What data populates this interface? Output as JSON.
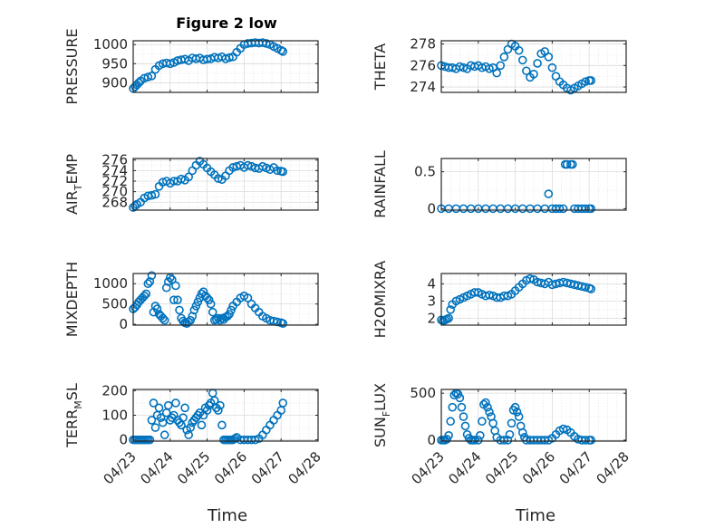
{
  "chart_data": [
    {
      "type": "scatter",
      "title": "Figure 2 low",
      "ylabel": "PRESSURE",
      "ylim": [
        875,
        1010
      ],
      "yticks": [
        900,
        950,
        1000
      ],
      "xlim": [
        0,
        5
      ],
      "x": [
        0,
        0.05,
        0.1,
        0.15,
        0.2,
        0.3,
        0.4,
        0.5,
        0.6,
        0.7,
        0.8,
        0.9,
        1.0,
        1.1,
        1.2,
        1.3,
        1.4,
        1.5,
        1.6,
        1.7,
        1.8,
        1.9,
        2.0,
        2.1,
        2.2,
        2.3,
        2.4,
        2.5,
        2.6,
        2.7,
        2.8,
        2.9,
        3.0,
        3.1,
        3.2,
        3.3,
        3.4,
        3.5,
        3.6,
        3.7,
        3.8,
        3.9,
        4.0,
        4.05
      ],
      "y": [
        885,
        890,
        895,
        900,
        905,
        912,
        915,
        918,
        935,
        945,
        950,
        952,
        950,
        953,
        958,
        960,
        962,
        958,
        965,
        963,
        965,
        960,
        962,
        963,
        967,
        965,
        968,
        963,
        966,
        968,
        980,
        990,
        1000,
        1003,
        1004,
        1005,
        1004,
        1005,
        1003,
        1000,
        995,
        990,
        985,
        982
      ]
    },
    {
      "type": "scatter",
      "ylabel": "THETA",
      "ylim": [
        273.5,
        278.3
      ],
      "yticks": [
        274,
        276,
        278
      ],
      "xlim": [
        0,
        5
      ],
      "x": [
        0,
        0.1,
        0.2,
        0.3,
        0.4,
        0.5,
        0.6,
        0.7,
        0.8,
        0.9,
        1.0,
        1.1,
        1.2,
        1.3,
        1.4,
        1.5,
        1.6,
        1.7,
        1.8,
        1.9,
        2.0,
        2.1,
        2.2,
        2.3,
        2.4,
        2.5,
        2.6,
        2.7,
        2.8,
        2.9,
        3.0,
        3.1,
        3.2,
        3.3,
        3.4,
        3.5,
        3.6,
        3.7,
        3.8,
        3.9,
        4.0,
        4.05
      ],
      "y": [
        276,
        275.9,
        275.8,
        275.8,
        275.7,
        275.9,
        275.8,
        275.7,
        276,
        275.9,
        276,
        275.8,
        275.9,
        275.7,
        275.8,
        275.3,
        276,
        276.8,
        277.5,
        278,
        277.8,
        277.4,
        276.5,
        275.5,
        274.9,
        275.2,
        276.2,
        277.1,
        277.3,
        276.8,
        275.8,
        275,
        274.5,
        274.2,
        273.9,
        273.7,
        273.9,
        274.1,
        274.3,
        274.5,
        274.6,
        274.6
      ]
    },
    {
      "type": "scatter",
      "ylabel": "AIR_TEMP",
      "ylim": [
        266.5,
        276.3
      ],
      "yticks": [
        268,
        270,
        272,
        274,
        276
      ],
      "xlim": [
        0,
        5
      ],
      "x": [
        0,
        0.05,
        0.1,
        0.2,
        0.3,
        0.4,
        0.5,
        0.6,
        0.7,
        0.8,
        0.9,
        1.0,
        1.1,
        1.2,
        1.3,
        1.4,
        1.5,
        1.6,
        1.7,
        1.8,
        1.9,
        2.0,
        2.1,
        2.2,
        2.3,
        2.4,
        2.5,
        2.6,
        2.7,
        2.8,
        2.9,
        3.0,
        3.1,
        3.2,
        3.3,
        3.4,
        3.5,
        3.6,
        3.7,
        3.8,
        3.9,
        4.0,
        4.05
      ],
      "y": [
        267,
        267.3,
        267.6,
        268,
        268.8,
        269.2,
        269.3,
        269.5,
        271,
        271.8,
        272,
        271.6,
        272,
        272,
        272.4,
        272.2,
        272.8,
        274,
        275,
        275.8,
        275.2,
        274.5,
        273.8,
        273.2,
        272.5,
        272.3,
        273,
        274,
        274.6,
        274.8,
        275,
        274.6,
        275,
        274.8,
        274.5,
        274.4,
        274.8,
        274.5,
        274.2,
        274.6,
        274,
        273.9,
        273.8
      ]
    },
    {
      "type": "scatter",
      "ylabel": "RAINFALL",
      "ylim": [
        -0.02,
        0.68
      ],
      "yticks": [
        0,
        0.5
      ],
      "xlim": [
        0,
        5
      ],
      "x": [
        0,
        0.2,
        0.4,
        0.6,
        0.8,
        1.0,
        1.2,
        1.4,
        1.6,
        1.8,
        2.0,
        2.2,
        2.4,
        2.6,
        2.8,
        2.9,
        3.0,
        3.1,
        3.2,
        3.3,
        3.35,
        3.4,
        3.5,
        3.55,
        3.6,
        3.7,
        3.8,
        3.9,
        4.0,
        4.05
      ],
      "y": [
        0,
        0,
        0,
        0,
        0,
        0,
        0,
        0,
        0,
        0,
        0,
        0,
        0,
        0,
        0,
        0.2,
        0,
        0,
        0,
        0,
        0.6,
        0.6,
        0.6,
        0.6,
        0,
        0,
        0,
        0,
        0,
        0
      ]
    },
    {
      "type": "scatter",
      "ylabel": "MIXDEPTH",
      "ylim": [
        -20,
        1250
      ],
      "yticks": [
        0,
        500,
        1000
      ],
      "xlim": [
        0,
        5
      ],
      "x": [
        0,
        0.05,
        0.1,
        0.15,
        0.2,
        0.25,
        0.3,
        0.35,
        0.4,
        0.45,
        0.5,
        0.55,
        0.6,
        0.65,
        0.7,
        0.75,
        0.8,
        0.85,
        0.9,
        0.95,
        1.0,
        1.05,
        1.1,
        1.15,
        1.2,
        1.25,
        1.3,
        1.35,
        1.4,
        1.45,
        1.5,
        1.55,
        1.6,
        1.65,
        1.7,
        1.75,
        1.8,
        1.85,
        1.9,
        1.95,
        2.0,
        2.05,
        2.1,
        2.15,
        2.2,
        2.25,
        2.3,
        2.35,
        2.4,
        2.45,
        2.5,
        2.55,
        2.6,
        2.65,
        2.7,
        2.8,
        2.9,
        3.0,
        3.1,
        3.2,
        3.3,
        3.4,
        3.5,
        3.6,
        3.7,
        3.8,
        3.9,
        4.0,
        4.05
      ],
      "y": [
        380,
        420,
        480,
        550,
        600,
        650,
        700,
        750,
        1000,
        1050,
        1200,
        300,
        450,
        380,
        250,
        200,
        150,
        100,
        900,
        1050,
        1150,
        1100,
        600,
        950,
        600,
        350,
        150,
        80,
        40,
        20,
        60,
        100,
        200,
        350,
        450,
        550,
        650,
        750,
        800,
        700,
        650,
        600,
        500,
        300,
        100,
        120,
        150,
        100,
        150,
        120,
        180,
        200,
        250,
        350,
        450,
        550,
        650,
        700,
        650,
        500,
        400,
        300,
        200,
        150,
        100,
        80,
        60,
        40,
        20
      ]
    },
    {
      "type": "scatter",
      "ylabel": "H2OMIXRA",
      "ylim": [
        1.6,
        4.6
      ],
      "yticks": [
        2,
        3,
        4
      ],
      "xlim": [
        0,
        5
      ],
      "x": [
        0,
        0.05,
        0.1,
        0.15,
        0.2,
        0.25,
        0.3,
        0.4,
        0.5,
        0.6,
        0.7,
        0.8,
        0.9,
        1.0,
        1.1,
        1.2,
        1.3,
        1.4,
        1.5,
        1.6,
        1.7,
        1.8,
        1.9,
        2.0,
        2.1,
        2.2,
        2.3,
        2.4,
        2.5,
        2.6,
        2.7,
        2.8,
        2.9,
        3.0,
        3.1,
        3.2,
        3.3,
        3.4,
        3.5,
        3.6,
        3.7,
        3.8,
        3.9,
        4.0,
        4.05
      ],
      "y": [
        1.9,
        1.85,
        1.9,
        1.95,
        2.0,
        2.5,
        2.8,
        3.0,
        3.1,
        3.2,
        3.3,
        3.4,
        3.5,
        3.5,
        3.4,
        3.3,
        3.35,
        3.3,
        3.2,
        3.2,
        3.3,
        3.3,
        3.4,
        3.6,
        3.8,
        4.0,
        4.2,
        4.3,
        4.25,
        4.1,
        4.05,
        4.0,
        4.1,
        3.95,
        4.0,
        4.05,
        4.1,
        4.05,
        4.0,
        3.95,
        3.9,
        3.85,
        3.8,
        3.75,
        3.7
      ]
    },
    {
      "type": "scatter",
      "ylabel": "TERR_MSL",
      "ylim": [
        -5,
        205
      ],
      "yticks": [
        0,
        100,
        200
      ],
      "xlim": [
        0,
        5
      ],
      "x": [
        0,
        0.05,
        0.1,
        0.15,
        0.2,
        0.25,
        0.3,
        0.35,
        0.4,
        0.45,
        0.5,
        0.55,
        0.6,
        0.65,
        0.7,
        0.75,
        0.8,
        0.85,
        0.9,
        0.95,
        1.0,
        1.05,
        1.1,
        1.15,
        1.2,
        1.25,
        1.3,
        1.35,
        1.4,
        1.45,
        1.5,
        1.55,
        1.6,
        1.65,
        1.7,
        1.75,
        1.8,
        1.85,
        1.9,
        1.95,
        2.0,
        2.05,
        2.1,
        2.15,
        2.2,
        2.25,
        2.3,
        2.35,
        2.4,
        2.45,
        2.5,
        2.55,
        2.6,
        2.65,
        2.7,
        2.75,
        2.8,
        2.9,
        3.0,
        3.1,
        3.2,
        3.3,
        3.4,
        3.5,
        3.6,
        3.7,
        3.8,
        3.9,
        4.0,
        4.05
      ],
      "y": [
        0,
        0,
        0,
        0,
        0,
        0,
        0,
        0,
        0,
        0,
        80,
        150,
        50,
        100,
        130,
        90,
        70,
        20,
        110,
        140,
        80,
        90,
        100,
        150,
        80,
        70,
        60,
        90,
        130,
        40,
        20,
        50,
        70,
        80,
        90,
        100,
        110,
        60,
        100,
        130,
        120,
        140,
        150,
        190,
        160,
        130,
        120,
        140,
        60,
        0,
        0,
        0,
        0,
        0,
        0,
        5,
        10,
        0,
        0,
        0,
        0,
        0,
        5,
        20,
        40,
        60,
        80,
        100,
        120,
        150
      ]
    },
    {
      "type": "scatter",
      "ylabel": "SUN_FLUX",
      "ylim": [
        -10,
        540
      ],
      "yticks": [
        0,
        500
      ],
      "xlim": [
        0,
        5
      ],
      "xticklabels": [
        "04/23",
        "04/24",
        "04/25",
        "04/26",
        "04/27",
        "04/28"
      ],
      "xlabel": "Time",
      "x": [
        0,
        0.05,
        0.1,
        0.15,
        0.2,
        0.25,
        0.3,
        0.35,
        0.4,
        0.45,
        0.5,
        0.55,
        0.6,
        0.65,
        0.7,
        0.75,
        0.8,
        0.85,
        0.9,
        1.0,
        1.05,
        1.1,
        1.15,
        1.2,
        1.25,
        1.3,
        1.35,
        1.4,
        1.45,
        1.5,
        1.6,
        1.7,
        1.8,
        1.85,
        1.9,
        1.95,
        2.0,
        2.05,
        2.1,
        2.15,
        2.2,
        2.25,
        2.3,
        2.4,
        2.5,
        2.6,
        2.7,
        2.8,
        2.9,
        3.0,
        3.1,
        3.2,
        3.3,
        3.4,
        3.5,
        3.6,
        3.7,
        3.8,
        3.9,
        4.0,
        4.05
      ],
      "y": [
        0,
        0,
        0,
        10,
        50,
        200,
        350,
        480,
        500,
        490,
        450,
        350,
        250,
        150,
        60,
        20,
        0,
        0,
        0,
        0,
        50,
        200,
        380,
        400,
        350,
        300,
        250,
        180,
        100,
        30,
        0,
        0,
        0,
        60,
        180,
        320,
        350,
        300,
        250,
        150,
        80,
        30,
        0,
        0,
        0,
        0,
        0,
        0,
        0,
        20,
        60,
        100,
        120,
        110,
        80,
        40,
        10,
        0,
        0,
        0,
        0
      ]
    }
  ]
}
